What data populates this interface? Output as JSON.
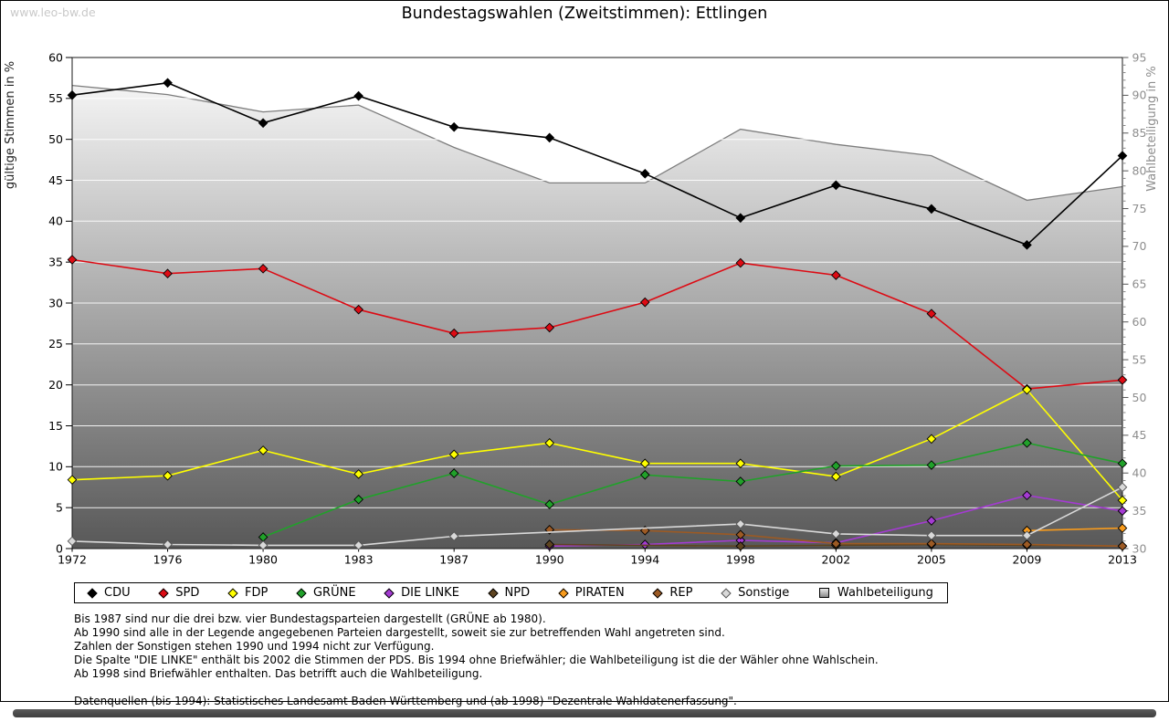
{
  "watermark": "www.leo-bw.de",
  "title": "Bundestagswahlen (Zweitstimmen): Ettlingen",
  "chart_data": {
    "type": "line",
    "title": "Bundestagswahlen (Zweitstimmen): Ettlingen",
    "categories": [
      "1972",
      "1976",
      "1980",
      "1983",
      "1987",
      "1990",
      "1994",
      "1998",
      "2002",
      "2005",
      "2009",
      "2013"
    ],
    "left_axis": {
      "label": "gültige Stimmen in %",
      "min": 0,
      "max": 60,
      "tick_step": 5
    },
    "right_axis": {
      "label": "Wahlbeteiligung in %",
      "min": 30,
      "max": 95,
      "tick_step": 5,
      "minor_step": 1
    },
    "grid": {
      "horizontal": true,
      "color": "#ffffff",
      "step": 5
    },
    "legend_position": "bottom",
    "series": [
      {
        "name": "CDU",
        "color": "#000000",
        "marker": "diamond",
        "axis": "left",
        "values": [
          55.4,
          56.9,
          52.0,
          55.3,
          51.5,
          50.2,
          45.8,
          40.4,
          44.4,
          41.5,
          37.1,
          48.0
        ]
      },
      {
        "name": "SPD",
        "color": "#dd0b14",
        "marker": "diamond",
        "axis": "left",
        "values": [
          35.3,
          33.6,
          34.2,
          29.2,
          26.3,
          27.0,
          30.1,
          34.9,
          33.4,
          28.7,
          19.5,
          20.6
        ]
      },
      {
        "name": "FDP",
        "color": "#ffff00",
        "marker": "diamond",
        "axis": "left",
        "values": [
          8.4,
          8.9,
          12.0,
          9.1,
          11.5,
          12.9,
          10.4,
          10.4,
          8.8,
          13.4,
          19.4,
          5.9
        ]
      },
      {
        "name": "GRÜNE",
        "color": "#21a12a",
        "marker": "diamond",
        "axis": "left",
        "values": [
          null,
          null,
          1.4,
          6.0,
          9.2,
          5.4,
          9.0,
          8.2,
          10.1,
          10.2,
          12.9,
          10.4
        ]
      },
      {
        "name": "DIE LINKE",
        "color": "#a43bd2",
        "marker": "diamond",
        "axis": "left",
        "values": [
          null,
          null,
          null,
          null,
          null,
          0.3,
          0.5,
          1.0,
          0.7,
          3.4,
          6.5,
          4.6
        ]
      },
      {
        "name": "NPD",
        "color": "#5e4420",
        "marker": "diamond",
        "axis": "left",
        "values": [
          null,
          null,
          null,
          null,
          null,
          0.5,
          null,
          0.3,
          0.4,
          0.5,
          0.4,
          0.3
        ]
      },
      {
        "name": "PIRATEN",
        "color": "#f89b1c",
        "marker": "diamond",
        "axis": "left",
        "values": [
          null,
          null,
          null,
          null,
          null,
          null,
          null,
          null,
          null,
          null,
          2.2,
          2.5
        ]
      },
      {
        "name": "REP",
        "color": "#9c5a24",
        "marker": "diamond",
        "axis": "left",
        "values": [
          null,
          null,
          null,
          null,
          null,
          2.3,
          2.2,
          1.7,
          0.6,
          0.6,
          0.5,
          0.3
        ]
      },
      {
        "name": "Sonstige",
        "color": "#d9d9d9",
        "marker": "diamond",
        "axis": "left",
        "values": [
          0.9,
          0.5,
          0.4,
          0.4,
          1.5,
          null,
          null,
          3.0,
          1.8,
          1.6,
          1.6,
          7.5
        ]
      },
      {
        "name": "Wahlbeteiligung",
        "color": "#7d7d7d",
        "marker": "none",
        "type": "area",
        "axis": "right",
        "fill_top": "#f4f4f4",
        "fill_bottom": "#585858",
        "values": [
          91.3,
          90.1,
          87.8,
          88.7,
          83.1,
          78.4,
          78.4,
          85.5,
          83.5,
          82.0,
          76.1,
          77.9
        ]
      }
    ]
  },
  "footnotes": [
    "Bis 1987 sind nur die drei bzw. vier Bundestagsparteien dargestellt (GRÜNE ab 1980).",
    "Ab 1990 sind alle in der Legende angegebenen Parteien dargestellt, soweit sie zur betreffenden Wahl angetreten sind.",
    "Zahlen der Sonstigen stehen 1990 und 1994 nicht zur Verfügung.",
    "Die Spalte \"DIE LINKE\" enthält bis 2002 die Stimmen der PDS. Bis 1994 ohne Briefwähler; die Wahlbeteiligung ist die der Wähler ohne Wahlschein.",
    "Ab 1998 sind Briefwähler enthalten. Das betrifft auch die Wahlbeteiligung.",
    "",
    "Datenquellen (bis 1994): Statistisches Landesamt Baden-Württemberg und (ab 1998) \"Dezentrale Wahldatenerfassung\"."
  ]
}
